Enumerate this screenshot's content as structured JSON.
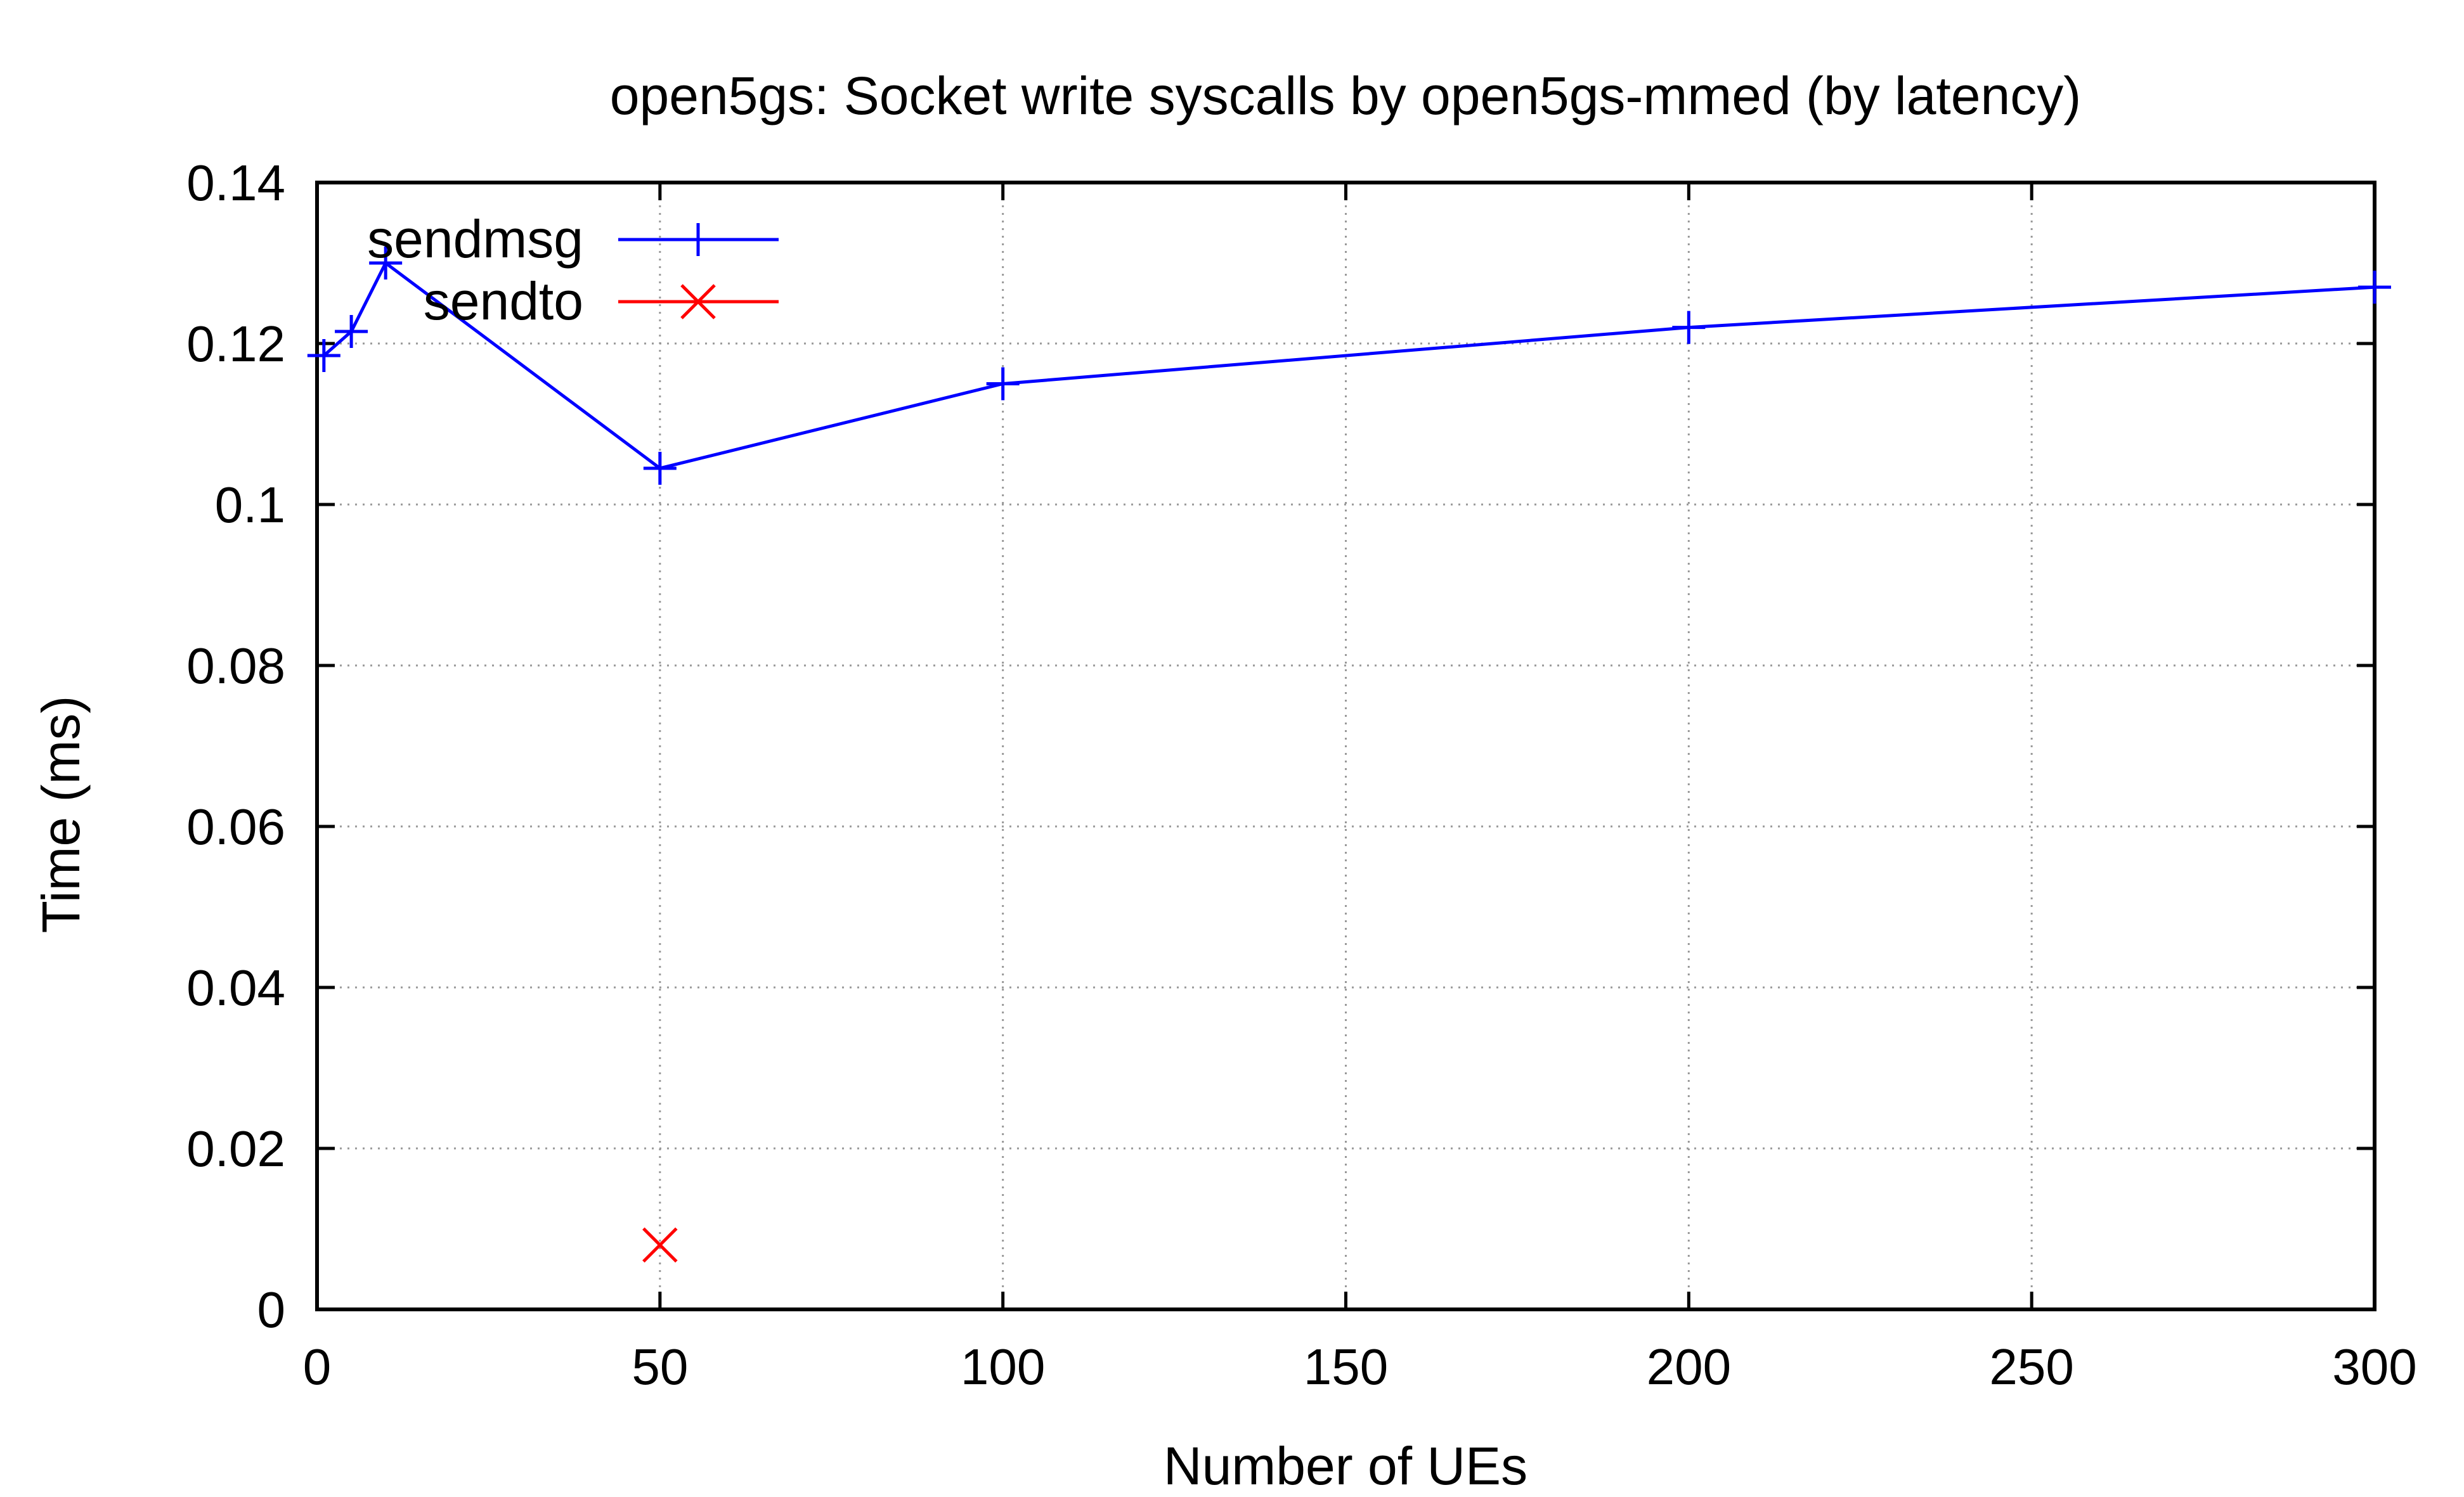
{
  "chart_data": {
    "type": "line",
    "title": "open5gs: Socket write syscalls by open5gs-mmed (by latency)",
    "xlabel": "Number of UEs",
    "ylabel": "Time (ms)",
    "xlim": [
      0,
      300
    ],
    "ylim": [
      0,
      0.14
    ],
    "xticks": [
      0,
      50,
      100,
      150,
      200,
      250,
      300
    ],
    "xtick_labels": [
      "0",
      "50",
      "100",
      "150",
      "200",
      "250",
      "300"
    ],
    "yticks": [
      0,
      0.02,
      0.04,
      0.06,
      0.08,
      0.1,
      0.12,
      0.14
    ],
    "ytick_labels": [
      "0",
      "0.02",
      "0.04",
      "0.06",
      "0.08",
      "0.1",
      "0.12",
      "0.14"
    ],
    "grid": true,
    "legend_position": "top-left",
    "series": [
      {
        "name": "sendmsg",
        "color": "#0000ff",
        "marker": "plus",
        "x": [
          1,
          5,
          10,
          50,
          100,
          200,
          300
        ],
        "y": [
          0.1185,
          0.1215,
          0.13,
          0.1045,
          0.115,
          0.122,
          0.127
        ]
      },
      {
        "name": "sendto",
        "color": "#ff0000",
        "marker": "cross",
        "x": [
          50
        ],
        "y": [
          0.008
        ]
      }
    ]
  }
}
